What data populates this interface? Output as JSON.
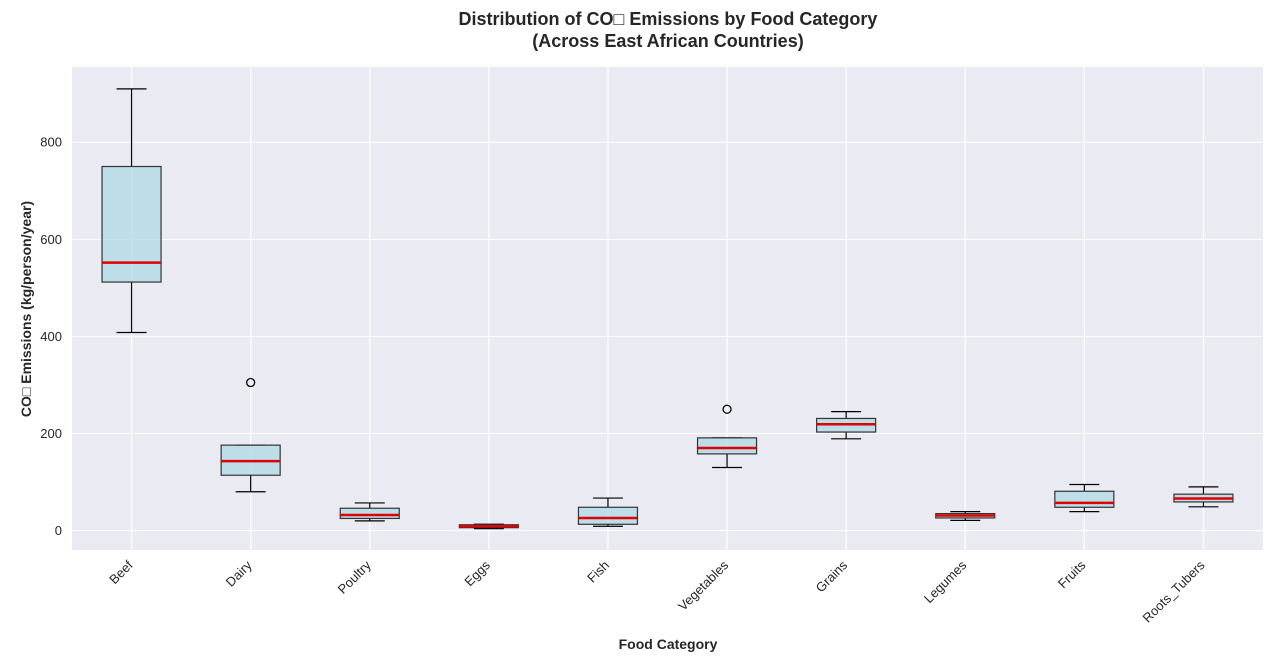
{
  "chart_data": {
    "type": "box",
    "title_line1": "Distribution of CO□ Emissions by Food Category",
    "title_line2": "(Across East African Countries)",
    "xlabel": "Food Category",
    "ylabel": "CO□ Emissions (kg/person/year)",
    "ylim": [
      -40,
      955
    ],
    "yticks": [
      0,
      200,
      400,
      600,
      800
    ],
    "grid": true,
    "colors": {
      "plot_background": "#eaeaf2",
      "grid": "#ffffff",
      "box_fill": "#add8e6",
      "box_edge": "#333333",
      "median": "#e00000",
      "whisker": "#000000"
    },
    "categories": [
      "Beef",
      "Dairy",
      "Poultry",
      "Eggs",
      "Fish",
      "Vegetables",
      "Grains",
      "Legumes",
      "Fruits",
      "Roots_Tubers"
    ],
    "boxes": [
      {
        "whislo": 408,
        "q1": 512,
        "median": 552,
        "q3": 750,
        "whishi": 910,
        "fliers": []
      },
      {
        "whislo": 80,
        "q1": 114,
        "median": 143,
        "q3": 176,
        "whishi": 176,
        "fliers": [
          305
        ]
      },
      {
        "whislo": 20,
        "q1": 25,
        "median": 32,
        "q3": 46,
        "whishi": 57,
        "fliers": []
      },
      {
        "whislo": 4,
        "q1": 6,
        "median": 9,
        "q3": 12,
        "whishi": 13,
        "fliers": []
      },
      {
        "whislo": 9,
        "q1": 13,
        "median": 26,
        "q3": 48,
        "whishi": 67,
        "fliers": []
      },
      {
        "whislo": 130,
        "q1": 158,
        "median": 170,
        "q3": 191,
        "whishi": 191,
        "fliers": [
          250
        ]
      },
      {
        "whislo": 189,
        "q1": 203,
        "median": 219,
        "q3": 231,
        "whishi": 245,
        "fliers": []
      },
      {
        "whislo": 21,
        "q1": 26,
        "median": 31,
        "q3": 35,
        "whishi": 39,
        "fliers": []
      },
      {
        "whislo": 39,
        "q1": 48,
        "median": 57,
        "q3": 81,
        "whishi": 95,
        "fliers": []
      },
      {
        "whislo": 49,
        "q1": 59,
        "median": 66,
        "q3": 75,
        "whishi": 90,
        "fliers": []
      }
    ]
  }
}
